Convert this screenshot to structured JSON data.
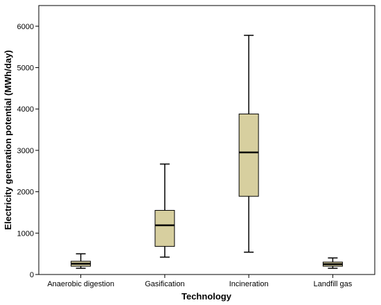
{
  "chart_data": {
    "type": "box",
    "xlabel": "Technology",
    "ylabel": "Electricity generation potential (MWh/day)",
    "categories": [
      "Anaerobic digestion",
      "Gasification",
      "Incineration",
      "Landfill gas"
    ],
    "boxes": [
      {
        "category": "Anaerobic digestion",
        "min": 150,
        "q1": 200,
        "median": 260,
        "q3": 320,
        "max": 500
      },
      {
        "category": "Gasification",
        "min": 420,
        "q1": 680,
        "median": 1190,
        "q3": 1550,
        "max": 2670
      },
      {
        "category": "Incineration",
        "min": 540,
        "q1": 1890,
        "median": 2950,
        "q3": 3880,
        "max": 5780
      },
      {
        "category": "Landfill gas",
        "min": 150,
        "q1": 200,
        "median": 250,
        "q3": 300,
        "max": 400
      }
    ],
    "yticks": [
      0,
      1000,
      2000,
      3000,
      4000,
      5000,
      6000
    ],
    "ylim": [
      0,
      6500
    ],
    "grid": false,
    "colors": {
      "box_fill": "#d7cf9f",
      "stroke": "#000000"
    }
  }
}
